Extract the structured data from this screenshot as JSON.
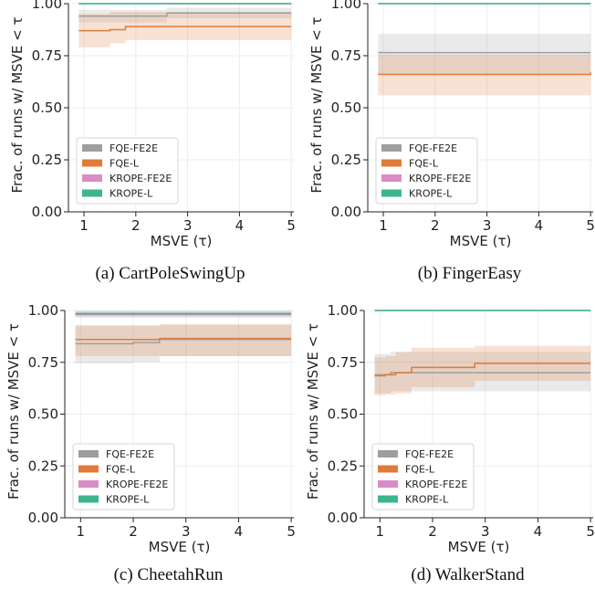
{
  "figure": {
    "legend_entries": [
      "FQE-FE2E",
      "FQE-L",
      "KROPE-FE2E",
      "KROPE-L"
    ],
    "colors": {
      "FQE-FE2E": "#9e9e9e",
      "FQE-L": "#e07b39",
      "KROPE-FE2E": "#d98cc6",
      "KROPE-L": "#3fb58c"
    }
  },
  "chart_data": [
    {
      "type": "line",
      "caption": "(a) CartPoleSwingUp",
      "xlabel": "MSVE (τ)",
      "ylabel": "Frac. of runs w/ MSVE < τ",
      "xlim": [
        0.7,
        5.05
      ],
      "ylim": [
        0,
        1.0
      ],
      "xticks": [
        "1",
        "2",
        "3",
        "4",
        "5"
      ],
      "yticks": [
        "0.00",
        "0.25",
        "0.50",
        "0.75",
        "1.00"
      ],
      "legend": "bottom-left",
      "grid": true,
      "series": [
        {
          "name": "FQE-FE2E",
          "x": [
            0.9,
            1.0,
            2.6,
            5.0
          ],
          "y": [
            0.94,
            0.94,
            0.955,
            0.955
          ],
          "lower": [
            0.91,
            0.91,
            0.93,
            0.93
          ],
          "upper": [
            0.97,
            0.97,
            0.98,
            0.98
          ]
        },
        {
          "name": "FQE-L",
          "x": [
            0.9,
            1.0,
            1.5,
            1.8,
            5.0
          ],
          "y": [
            0.87,
            0.87,
            0.875,
            0.89,
            0.89
          ],
          "lower": [
            0.79,
            0.79,
            0.81,
            0.825,
            0.825
          ],
          "upper": [
            0.95,
            0.95,
            0.96,
            0.96,
            0.96
          ]
        },
        {
          "name": "KROPE-FE2E",
          "x": [
            0.9,
            5.0
          ],
          "y": [
            1.0,
            1.0
          ],
          "lower": [
            1.0,
            1.0
          ],
          "upper": [
            1.0,
            1.0
          ]
        },
        {
          "name": "KROPE-L",
          "x": [
            0.9,
            5.0
          ],
          "y": [
            1.0,
            1.0
          ],
          "lower": [
            1.0,
            1.0
          ],
          "upper": [
            1.0,
            1.0
          ]
        }
      ]
    },
    {
      "type": "line",
      "caption": "(b) FingerEasy",
      "xlabel": "MSVE (τ)",
      "ylabel": "Frac. of runs w/ MSVE < τ",
      "xlim": [
        0.7,
        5.05
      ],
      "ylim": [
        0,
        1.0
      ],
      "xticks": [
        "1",
        "2",
        "3",
        "4",
        "5"
      ],
      "yticks": [
        "0.00",
        "0.25",
        "0.50",
        "0.75",
        "1.00"
      ],
      "legend": "bottom-left",
      "grid": true,
      "series": [
        {
          "name": "FQE-FE2E",
          "x": [
            0.9,
            5.0
          ],
          "y": [
            0.765,
            0.765
          ],
          "lower": [
            0.66,
            0.66
          ],
          "upper": [
            0.855,
            0.855
          ]
        },
        {
          "name": "FQE-L",
          "x": [
            0.9,
            4.9,
            5.0
          ],
          "y": [
            0.66,
            0.66,
            0.67
          ],
          "lower": [
            0.56,
            0.56,
            0.57
          ],
          "upper": [
            0.755,
            0.755,
            0.765
          ]
        },
        {
          "name": "KROPE-FE2E",
          "x": [
            0.9,
            5.0
          ],
          "y": [
            1.0,
            1.0
          ],
          "lower": [
            1.0,
            1.0
          ],
          "upper": [
            1.0,
            1.0
          ]
        },
        {
          "name": "KROPE-L",
          "x": [
            0.9,
            5.0
          ],
          "y": [
            1.0,
            1.0
          ],
          "lower": [
            1.0,
            1.0
          ],
          "upper": [
            1.0,
            1.0
          ]
        }
      ]
    },
    {
      "type": "line",
      "caption": "(c) CheetahRun",
      "xlabel": "MSVE (τ)",
      "ylabel": "Frac. of runs w/ MSVE < τ",
      "xlim": [
        0.7,
        5.05
      ],
      "ylim": [
        0,
        1.0
      ],
      "xticks": [
        "1",
        "2",
        "3",
        "4",
        "5"
      ],
      "yticks": [
        "0.00",
        "0.25",
        "0.50",
        "0.75",
        "1.00"
      ],
      "legend": "bottom-left",
      "grid": true,
      "series": [
        {
          "name": "FQE-FE2E",
          "x": [
            0.9,
            2.0,
            2.5,
            5.0
          ],
          "y": [
            0.84,
            0.845,
            0.86,
            0.86
          ],
          "lower": [
            0.745,
            0.75,
            0.78,
            0.78
          ],
          "upper": [
            0.925,
            0.925,
            0.93,
            0.93
          ]
        },
        {
          "name": "FQE-L",
          "x": [
            0.9,
            2.3,
            2.5,
            5.0
          ],
          "y": [
            0.86,
            0.86,
            0.865,
            0.865
          ],
          "lower": [
            0.78,
            0.78,
            0.78,
            0.78
          ],
          "upper": [
            0.93,
            0.93,
            0.935,
            0.935
          ]
        },
        {
          "name": "KROPE-FE2E",
          "x": [
            0.9,
            5.0
          ],
          "y": [
            0.98,
            0.98
          ],
          "lower": [
            0.965,
            0.965
          ],
          "upper": [
            0.995,
            0.995
          ]
        },
        {
          "name": "KROPE-L",
          "x": [
            0.9,
            5.0
          ],
          "y": [
            0.985,
            0.985
          ],
          "lower": [
            0.97,
            0.97
          ],
          "upper": [
            1.0,
            1.0
          ]
        }
      ]
    },
    {
      "type": "line",
      "caption": "(d) WalkerStand",
      "xlabel": "MSVE (τ)",
      "ylabel": "Frac. of runs w/ MSVE < τ",
      "xlim": [
        0.7,
        5.05
      ],
      "ylim": [
        0,
        1.0
      ],
      "xticks": [
        "1",
        "2",
        "3",
        "4",
        "5"
      ],
      "yticks": [
        "0.00",
        "0.25",
        "0.50",
        "0.75",
        "1.00"
      ],
      "legend": "bottom-left",
      "grid": true,
      "series": [
        {
          "name": "FQE-FE2E",
          "x": [
            0.9,
            1.0,
            1.2,
            5.0
          ],
          "y": [
            0.69,
            0.69,
            0.7,
            0.7
          ],
          "lower": [
            0.6,
            0.6,
            0.61,
            0.61
          ],
          "upper": [
            0.79,
            0.79,
            0.8,
            0.8
          ]
        },
        {
          "name": "FQE-L",
          "x": [
            0.9,
            1.1,
            1.3,
            1.6,
            2.8,
            5.0
          ],
          "y": [
            0.685,
            0.69,
            0.7,
            0.725,
            0.745,
            0.745
          ],
          "lower": [
            0.59,
            0.595,
            0.6,
            0.63,
            0.66,
            0.66
          ],
          "upper": [
            0.775,
            0.78,
            0.8,
            0.82,
            0.83,
            0.83
          ]
        },
        {
          "name": "KROPE-FE2E",
          "x": [
            0.9,
            5.0
          ],
          "y": [
            1.0,
            1.0
          ],
          "lower": [
            1.0,
            1.0
          ],
          "upper": [
            1.0,
            1.0
          ]
        },
        {
          "name": "KROPE-L",
          "x": [
            0.9,
            5.0
          ],
          "y": [
            1.0,
            1.0
          ],
          "lower": [
            1.0,
            1.0
          ],
          "upper": [
            1.0,
            1.0
          ]
        }
      ]
    }
  ]
}
